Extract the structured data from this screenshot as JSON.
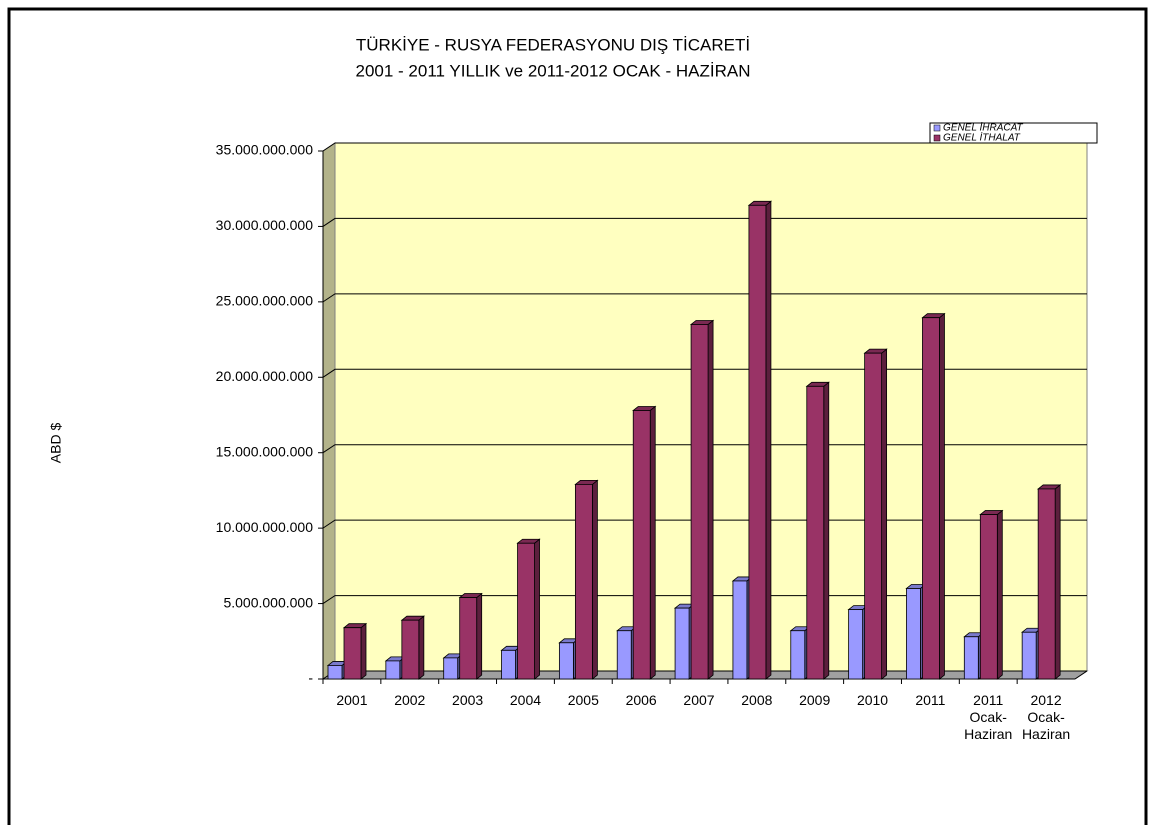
{
  "chart_data": {
    "type": "bar3d",
    "title": "TÜRKİYE - RUSYA FEDERASYONU DIŞ TİCARETİ",
    "subtitle": "2001 - 2011 YILLIK ve 2011-2012 OCAK - HAZİRAN",
    "y_label": "ABD $",
    "categories": [
      "2001",
      "2002",
      "2003",
      "2004",
      "2005",
      "2006",
      "2007",
      "2008",
      "2009",
      "2010",
      "2011",
      "2011\nOcak-\nHaziran",
      "2012\nOcak-\nHaziran"
    ],
    "series": [
      {
        "name": "GENEL İHRACAT",
        "color": "#9999ff",
        "values": [
          900000000,
          1200000000,
          1400000000,
          1900000000,
          2400000000,
          3200000000,
          4700000000,
          6500000000,
          3200000000,
          4600000000,
          6000000000,
          2800000000,
          3100000000
        ]
      },
      {
        "name": "GENEL İTHALAT",
        "color": "#993366",
        "values": [
          3400000000,
          3900000000,
          5400000000,
          9000000000,
          12900000000,
          17800000000,
          23500000000,
          31400000000,
          19400000000,
          21600000000,
          23950000000,
          10900000000,
          12600000000
        ]
      }
    ],
    "ylim": [
      0,
      35000000000
    ],
    "yticks": [
      {
        "value": 0,
        "label": "-"
      },
      {
        "value": 5000000000,
        "label": "5.000.000.000"
      },
      {
        "value": 10000000000,
        "label": "10.000.000.000"
      },
      {
        "value": 15000000000,
        "label": "15.000.000.000"
      },
      {
        "value": 20000000000,
        "label": "20.000.000.000"
      },
      {
        "value": 25000000000,
        "label": "25.000.000.000"
      },
      {
        "value": 30000000000,
        "label": "30.000.000.000"
      },
      {
        "value": 35000000000,
        "label": "35.000.000.000"
      }
    ],
    "grid": true,
    "legend": "top-right"
  }
}
